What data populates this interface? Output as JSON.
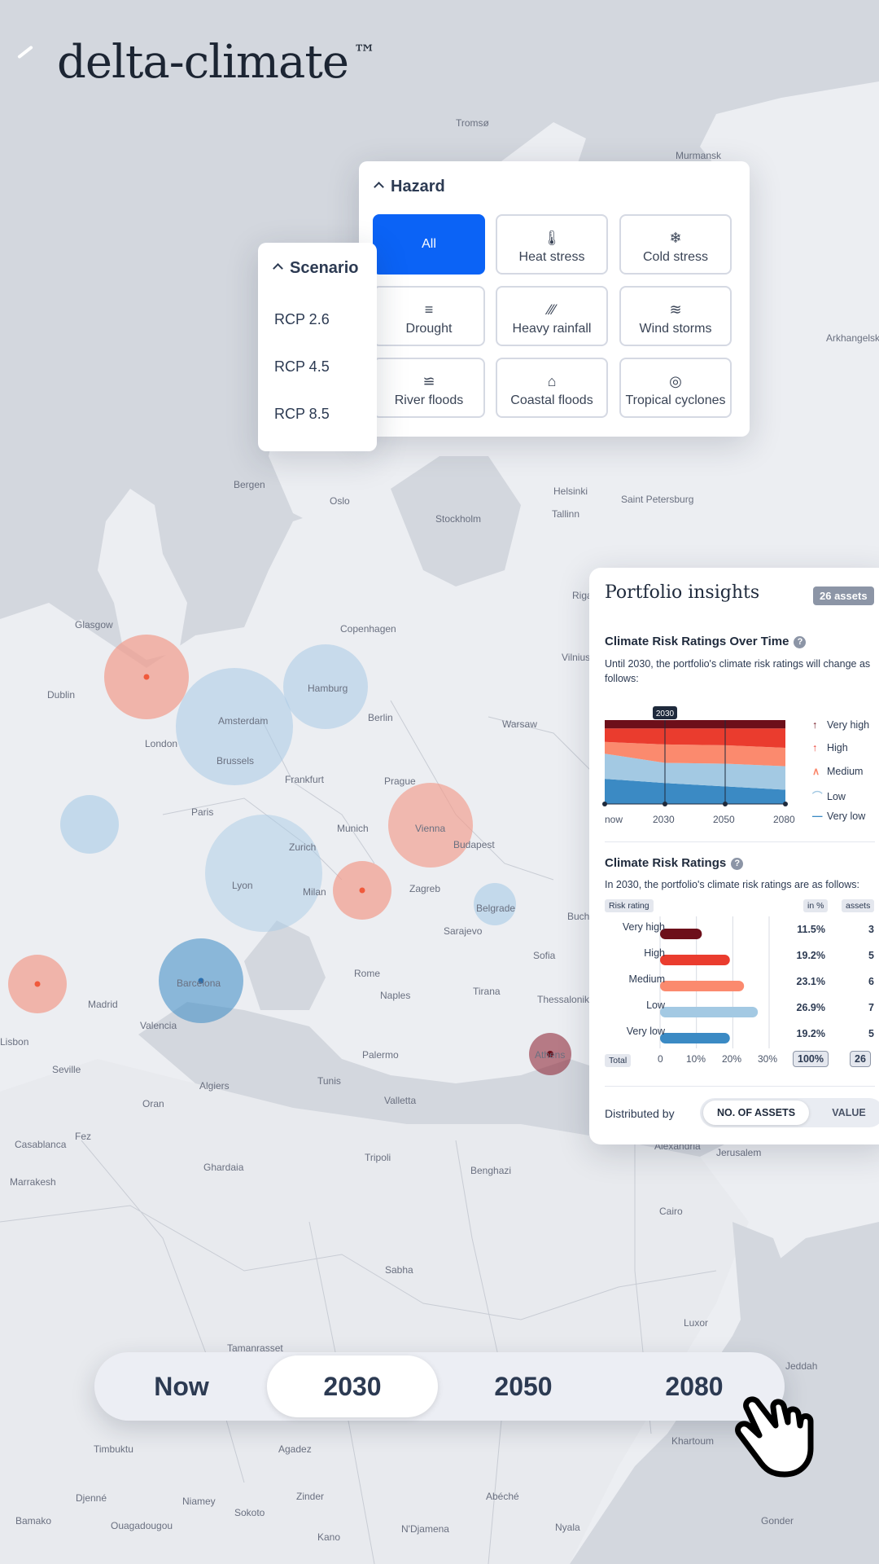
{
  "brand": {
    "logo_text": "delta-climate",
    "trademark": "™"
  },
  "map": {
    "cities": [
      "Tromsø",
      "Murmansk",
      "Arkhangelsk",
      "Bergen",
      "Oslo",
      "Stockholm",
      "Helsinki",
      "Tallinn",
      "Saint Petersburg",
      "Riga",
      "Glasgow",
      "Dublin",
      "Copenhagen",
      "Vilnius",
      "Hamburg",
      "Amsterdam",
      "Berlin",
      "London",
      "Warsaw",
      "Brussels",
      "Frankfurt",
      "Prague",
      "Paris",
      "Munich",
      "Vienna",
      "Budapest",
      "Zurich",
      "Lyon",
      "Milan",
      "Zagreb",
      "Belgrade",
      "Sarajevo",
      "Buch",
      "Barcelona",
      "Madrid",
      "Rome",
      "Sofia",
      "Valencia",
      "Naples",
      "Tirana",
      "Thessaloniki",
      "Lisbon",
      "Seville",
      "Palermo",
      "Athens",
      "Algiers",
      "Tunis",
      "Oran",
      "Valletta",
      "Casablanca",
      "Fez",
      "Ghardaia",
      "Tripoli",
      "Benghazi",
      "Alexandria",
      "Jerusalem",
      "Marrakesh",
      "Cairo",
      "Sabha",
      "Luxor",
      "Tamanrasset",
      "Jeddah",
      "Timbuktu",
      "Agadez",
      "Khartoum",
      "Djenné",
      "Niamey",
      "Zinder",
      "Abéché",
      "Bamako",
      "Ouagadougou",
      "Sokoto",
      "Kano",
      "N'Djamena",
      "Nyala",
      "Gonder"
    ],
    "colors": {
      "high": "#f08a78",
      "low": "#8fb9dc",
      "medium_low": "#3b8ac4",
      "very_high": "#7a1020"
    }
  },
  "hazard": {
    "title": "Hazard",
    "options": [
      {
        "label": "All",
        "icon": "all",
        "active": true
      },
      {
        "label": "Heat stress",
        "icon": "thermometer-icon"
      },
      {
        "label": "Cold stress",
        "icon": "snowflake-icon"
      },
      {
        "label": "Drought",
        "icon": "drought-icon"
      },
      {
        "label": "Heavy rainfall",
        "icon": "rain-icon"
      },
      {
        "label": "Wind storms",
        "icon": "wind-icon"
      },
      {
        "label": "River floods",
        "icon": "river-flood-icon"
      },
      {
        "label": "Coastal floods",
        "icon": "coastal-flood-icon"
      },
      {
        "label": "Tropical cyclones",
        "icon": "cyclone-icon"
      }
    ]
  },
  "scenario": {
    "title": "Scenario",
    "options": [
      "RCP 2.6",
      "RCP 4.5",
      "RCP 8.5"
    ]
  },
  "insights": {
    "title": "Portfolio insights",
    "assets_badge": "26 assets",
    "over_time": {
      "heading": "Climate Risk Ratings Over Time",
      "help": "?",
      "description": "Until 2030, the portfolio's climate risk ratings will change as follows:",
      "marker_label": "2030"
    },
    "ratings": {
      "heading": "Climate Risk Ratings",
      "help": "?",
      "description": "In 2030, the portfolio's climate risk ratings are as follows:",
      "col_rating": "Risk rating",
      "col_pct": "in %",
      "col_assets": "assets",
      "total_label": "Total",
      "total_pct": "100%",
      "total_assets": "26"
    },
    "distributed_by": {
      "label": "Distributed by",
      "options": [
        "NO. OF ASSETS",
        "VALUE"
      ],
      "selected": "NO. OF ASSETS"
    }
  },
  "chart_data": [
    {
      "type": "area",
      "title": "Climate Risk Ratings Over Time",
      "x": [
        "now",
        "2030",
        "2050",
        "2080"
      ],
      "stacked": true,
      "ylim": [
        0,
        100
      ],
      "series": [
        {
          "name": "Very low",
          "color": "#3b8ac4",
          "values": [
            30,
            25,
            21,
            17
          ]
        },
        {
          "name": "Low",
          "color": "#a3c9e3",
          "values": [
            30,
            24,
            27,
            28
          ]
        },
        {
          "name": "Medium",
          "color": "#fb8a6e",
          "values": [
            14,
            22,
            22,
            22
          ]
        },
        {
          "name": "High",
          "color": "#ea3c2e",
          "values": [
            16,
            19,
            20,
            23
          ]
        },
        {
          "name": "Very high",
          "color": "#6d0f1a",
          "values": [
            10,
            10,
            10,
            10
          ]
        }
      ],
      "legend": [
        "Very high",
        "High",
        "Medium",
        "Low",
        "Very low"
      ],
      "highlight": "2030"
    },
    {
      "type": "bar",
      "orientation": "horizontal",
      "title": "Climate Risk Ratings",
      "categories": [
        "Very high",
        "High",
        "Medium",
        "Low",
        "Very low"
      ],
      "values": [
        11.5,
        19.2,
        23.1,
        26.9,
        19.2
      ],
      "value_labels": [
        "11.5%",
        "19.2%",
        "23.1%",
        "26.9%",
        "19.2%"
      ],
      "assets": [
        "3",
        "5",
        "6",
        "7",
        "5"
      ],
      "colors": [
        "#6d0f1a",
        "#ea3c2e",
        "#fb8a6e",
        "#a3c9e3",
        "#3b8ac4"
      ],
      "xticks": [
        "0",
        "10%",
        "20%",
        "30%"
      ],
      "xlim": [
        0,
        30
      ]
    }
  ],
  "timeline": {
    "options": [
      "Now",
      "2030",
      "2050",
      "2080"
    ],
    "selected": "2030"
  }
}
